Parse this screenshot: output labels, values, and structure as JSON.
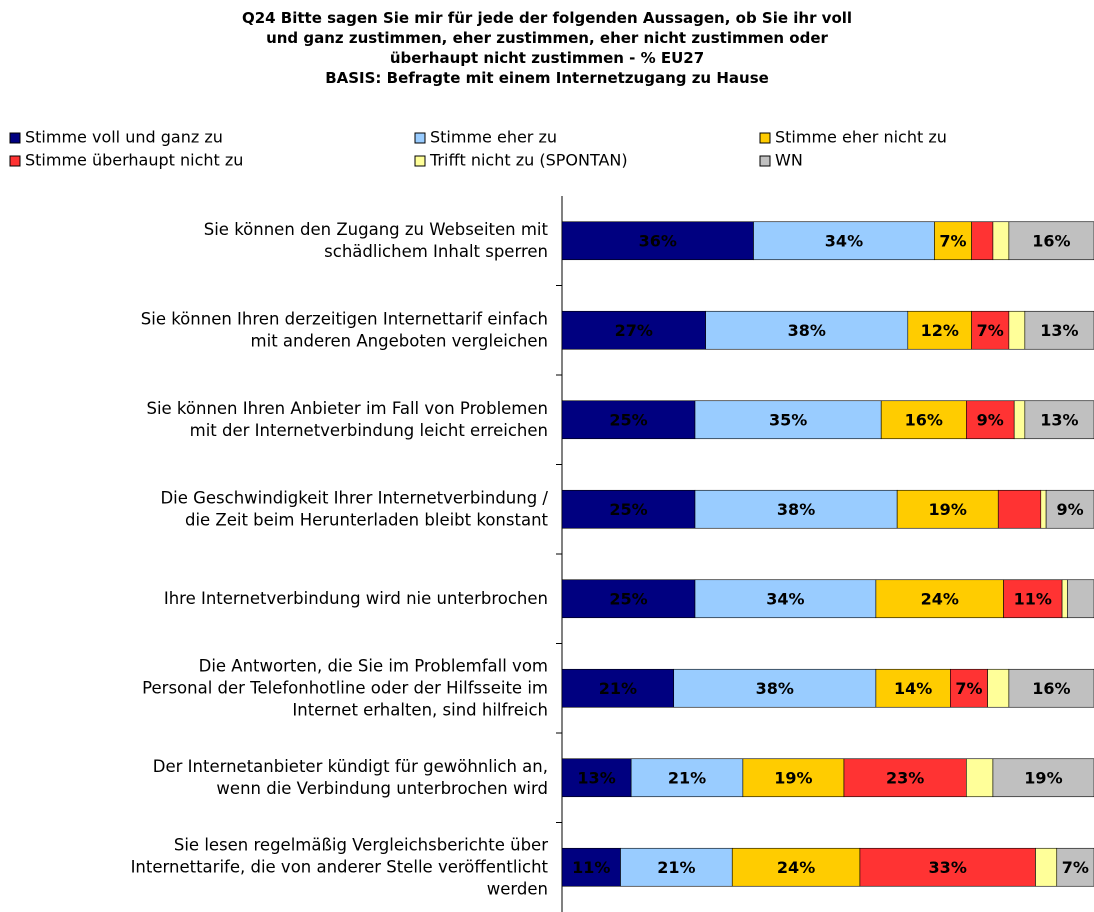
{
  "chart_data": {
    "type": "stacked-bar-horizontal",
    "title": "Q24 Bitte sagen Sie mir für jede der folgenden Aussagen, ob Sie ihr voll\nund ganz zustimmen, eher zustimmen, eher nicht zustimmen oder\nüberhaupt nicht zustimmen - % EU27\nBASIS: Befragte mit einem Internetzugang zu Hause",
    "categories": [
      "Sie können den Zugang zu Webseiten mit\nschädlichem Inhalt sperren",
      "Sie können Ihren derzeitigen Internettarif einfach\nmit anderen Angeboten vergleichen",
      "Sie können Ihren Anbieter im Fall von Problemen\nmit der Internetverbindung leicht erreichen",
      "Die Geschwindigkeit Ihrer Internetverbindung /\ndie Zeit beim Herunterladen bleibt konstant",
      "Ihre Internetverbindung wird nie unterbrochen",
      "Die Antworten, die Sie im Problemfall vom\nPersonal der Telefonhotline oder der Hilfsseite im\nInternet erhalten, sind hilfreich",
      "Der Internetanbieter kündigt für gewöhnlich an,\nwenn die Verbindung unterbrochen wird",
      "Sie lesen regelmäßig Vergleichsberichte über\nInternettarife, die von anderer Stelle veröffentlicht\nwerden"
    ],
    "series": [
      {
        "name": "Stimme voll und ganz zu",
        "color": "#000080",
        "values": [
          36,
          27,
          25,
          25,
          25,
          21,
          13,
          11
        ],
        "value_labels": [
          "36%",
          "27%",
          "25%",
          "25%",
          "25%",
          "21%",
          "13%",
          "11%"
        ]
      },
      {
        "name": "Stimme eher zu",
        "color": "#99ccff",
        "values": [
          34,
          38,
          35,
          38,
          34,
          38,
          21,
          21
        ],
        "value_labels": [
          "34%",
          "38%",
          "35%",
          "38%",
          "34%",
          "38%",
          "21%",
          "21%"
        ]
      },
      {
        "name": "Stimme eher nicht zu",
        "color": "#ffcc00",
        "values": [
          7,
          12,
          16,
          19,
          24,
          14,
          19,
          24
        ],
        "value_labels": [
          "7%",
          "12%",
          "16%",
          "19%",
          "24%",
          "14%",
          "19%",
          "24%"
        ]
      },
      {
        "name": "Stimme überhaupt nicht zu",
        "color": "#ff3333",
        "values": [
          4,
          7,
          9,
          8,
          11,
          7,
          23,
          33
        ],
        "value_labels": [
          null,
          "7%",
          "9%",
          null,
          "11%",
          "7%",
          "23%",
          "33%"
        ]
      },
      {
        "name": "Trifft nicht zu (SPONTAN)",
        "color": "#ffff99",
        "values": [
          3,
          3,
          2,
          1,
          1,
          4,
          5,
          4
        ],
        "value_labels": [
          null,
          null,
          null,
          null,
          null,
          null,
          null,
          null
        ]
      },
      {
        "name": "WN",
        "color": "#c0c0c0",
        "values": [
          16,
          13,
          13,
          9,
          5,
          16,
          19,
          7
        ],
        "value_labels": [
          "16%",
          "13%",
          "13%",
          "9%",
          null,
          "16%",
          "19%",
          "7%"
        ]
      }
    ]
  }
}
